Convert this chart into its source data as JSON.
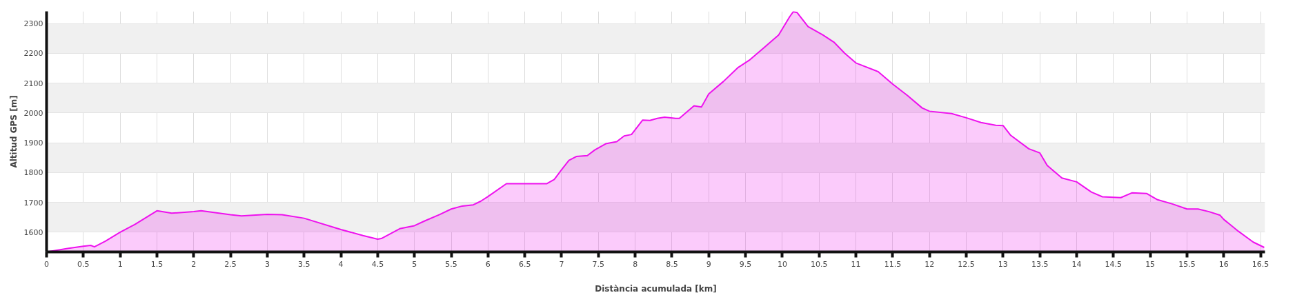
{
  "chart_data": {
    "type": "area",
    "xlabel": "Distància acumulada [km]",
    "ylabel": "Altitud GPS [m]",
    "x": [
      0,
      0.3,
      0.5,
      0.6,
      0.65,
      0.8,
      1.0,
      1.2,
      1.5,
      1.7,
      2.0,
      2.1,
      2.5,
      2.65,
      3.0,
      3.2,
      3.5,
      4.0,
      4.3,
      4.5,
      4.55,
      4.8,
      5.0,
      5.14,
      5.34,
      5.5,
      5.65,
      5.8,
      5.9,
      6.0,
      6.25,
      6.8,
      6.9,
      7.0,
      7.1,
      7.2,
      7.35,
      7.45,
      7.6,
      7.75,
      7.85,
      7.95,
      8.1,
      8.2,
      8.3,
      8.4,
      8.55,
      8.6,
      8.8,
      8.9,
      9.0,
      9.2,
      9.4,
      9.55,
      9.75,
      9.95,
      10.1,
      10.15,
      10.2,
      10.35,
      10.55,
      10.7,
      10.85,
      11.0,
      11.3,
      11.5,
      11.7,
      11.9,
      12.0,
      12.3,
      12.5,
      12.7,
      12.9,
      13.0,
      13.1,
      13.35,
      13.5,
      13.6,
      13.8,
      14.0,
      14.2,
      14.35,
      14.6,
      14.75,
      14.95,
      15.1,
      15.3,
      15.5,
      15.65,
      15.8,
      15.95,
      16.0,
      16.2,
      16.4,
      16.55
    ],
    "series": [
      {
        "color": "#ee11ee",
        "values": [
          1534,
          1546,
          1553,
          1556,
          1551,
          1570,
          1600,
          1626,
          1672,
          1664,
          1669,
          1672,
          1659,
          1655,
          1660,
          1659,
          1647,
          1609,
          1589,
          1577,
          1579,
          1612,
          1622,
          1638,
          1659,
          1678,
          1688,
          1692,
          1704,
          1720,
          1763,
          1763,
          1777,
          1810,
          1841,
          1854,
          1857,
          1876,
          1897,
          1904,
          1923,
          1928,
          1976,
          1975,
          1982,
          1986,
          1982,
          1982,
          2024,
          2020,
          2064,
          2106,
          2153,
          2177,
          2219,
          2262,
          2323,
          2340,
          2337,
          2290,
          2262,
          2238,
          2200,
          2168,
          2139,
          2097,
          2059,
          2017,
          2006,
          1998,
          1984,
          1968,
          1959,
          1958,
          1926,
          1880,
          1866,
          1824,
          1782,
          1769,
          1735,
          1719,
          1716,
          1732,
          1730,
          1709,
          1695,
          1678,
          1678,
          1669,
          1657,
          1643,
          1603,
          1567,
          1549
        ]
      }
    ],
    "xlim": [
      0,
      16.56
    ],
    "ylim": [
      1534,
      2341
    ],
    "xticks": [
      0,
      0.5,
      1,
      1.5,
      2,
      2.5,
      3,
      3.5,
      4,
      4.5,
      5,
      5.5,
      6,
      6.5,
      7,
      7.5,
      8,
      8.5,
      9,
      9.5,
      10,
      10.5,
      11,
      11.5,
      12,
      12.5,
      13,
      13.5,
      14,
      14.5,
      15,
      15.5,
      16,
      16.5
    ],
    "yticks": [
      1600,
      1700,
      1800,
      1900,
      2000,
      2100,
      2200,
      2300
    ],
    "grid": true
  }
}
